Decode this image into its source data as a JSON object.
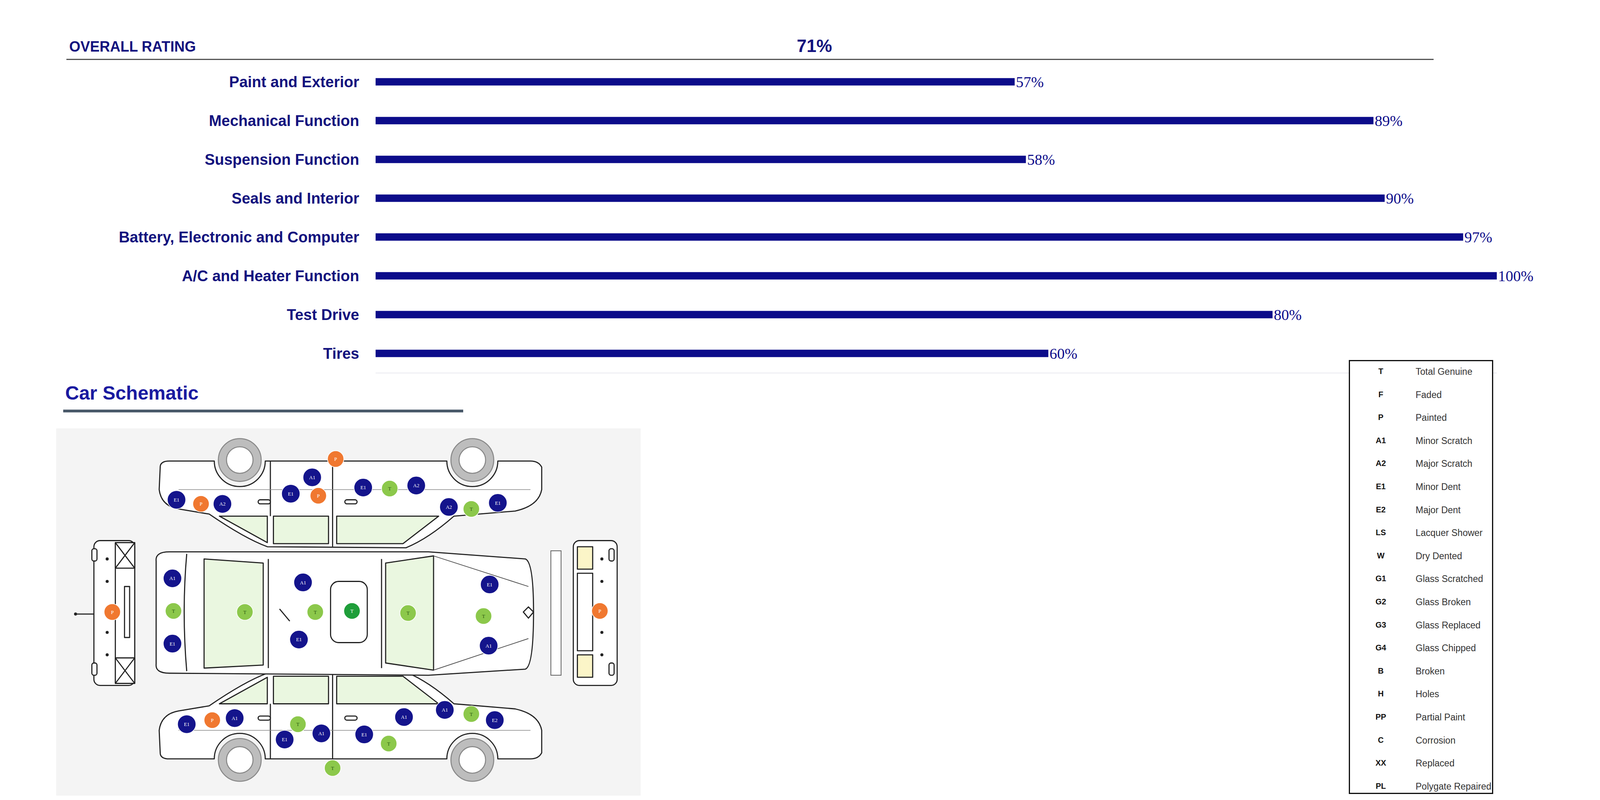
{
  "overall_rating": {
    "label": "OVERALL RATING",
    "value": 71,
    "value_label": "71%"
  },
  "chart_data": {
    "type": "bar",
    "orientation": "horizontal",
    "categories": [
      "Paint and Exterior",
      "Mechanical Function",
      "Suspension Function",
      "Seals and Interior",
      "Battery, Electronic and Computer",
      "A/C and Heater Function",
      "Test Drive",
      "Tires"
    ],
    "values": [
      57,
      89,
      58,
      90,
      97,
      100,
      80,
      60
    ],
    "value_labels": [
      "57%",
      "89%",
      "58%",
      "90%",
      "97%",
      "100%",
      "80%",
      "60%"
    ],
    "color": "#0c0c8a",
    "xlim": [
      0,
      100
    ],
    "xticks": [],
    "grid": false,
    "data_labels": true,
    "tick_labels": "y"
  },
  "schematic": {
    "title": "Car Schematic",
    "markers": [
      {
        "code": "P",
        "color": "#f07830"
      },
      {
        "code": "A1",
        "color": "#14148c"
      },
      {
        "code": "E1",
        "color": "#14148c"
      },
      {
        "code": "P",
        "color": "#f07830"
      },
      {
        "code": "A2",
        "color": "#14148c"
      },
      {
        "code": "E1",
        "color": "#14148c"
      },
      {
        "code": "P",
        "color": "#f07830"
      },
      {
        "code": "E1",
        "color": "#14148c"
      },
      {
        "code": "T",
        "color": "#8cc84b"
      },
      {
        "code": "A2",
        "color": "#14148c"
      },
      {
        "code": "A2",
        "color": "#14148c"
      },
      {
        "code": "T",
        "color": "#8cc84b"
      },
      {
        "code": "E1",
        "color": "#14148c"
      },
      {
        "code": "A1",
        "color": "#14148c"
      },
      {
        "code": "T",
        "color": "#8cc84b"
      },
      {
        "code": "E1",
        "color": "#14148c"
      },
      {
        "code": "T",
        "color": "#8cc84b"
      },
      {
        "code": "A1",
        "color": "#14148c"
      },
      {
        "code": "T",
        "color": "#8cc84b"
      },
      {
        "code": "T",
        "color": "#1f9e3a"
      },
      {
        "code": "E1",
        "color": "#14148c"
      },
      {
        "code": "T",
        "color": "#8cc84b"
      },
      {
        "code": "E1",
        "color": "#14148c"
      },
      {
        "code": "T",
        "color": "#8cc84b"
      },
      {
        "code": "A1",
        "color": "#14148c"
      },
      {
        "code": "P",
        "color": "#f07830"
      },
      {
        "code": "P",
        "color": "#f07830"
      },
      {
        "code": "E1",
        "color": "#14148c"
      },
      {
        "code": "P",
        "color": "#f07830"
      },
      {
        "code": "A1",
        "color": "#14148c"
      },
      {
        "code": "T",
        "color": "#8cc84b"
      },
      {
        "code": "E1",
        "color": "#14148c"
      },
      {
        "code": "A1",
        "color": "#14148c"
      },
      {
        "code": "E1",
        "color": "#14148c"
      },
      {
        "code": "T",
        "color": "#8cc84b"
      },
      {
        "code": "A1",
        "color": "#14148c"
      },
      {
        "code": "A1",
        "color": "#14148c"
      },
      {
        "code": "T",
        "color": "#8cc84b"
      },
      {
        "code": "E2",
        "color": "#14148c"
      },
      {
        "code": "T",
        "color": "#8cc84b"
      }
    ]
  },
  "legend_table": {
    "rows": [
      [
        "T",
        "Total Genuine"
      ],
      [
        "F",
        "Faded"
      ],
      [
        "P",
        "Painted"
      ],
      [
        "A1",
        "Minor Scratch"
      ],
      [
        "A2",
        "Major Scratch"
      ],
      [
        "E1",
        "Minor Dent"
      ],
      [
        "E2",
        "Major Dent"
      ],
      [
        "LS",
        "Lacquer Shower"
      ],
      [
        "W",
        "Dry Dented"
      ],
      [
        "G1",
        "Glass Scratched"
      ],
      [
        "G2",
        "Glass Broken"
      ],
      [
        "G3",
        "Glass Replaced"
      ],
      [
        "G4",
        "Glass Chipped"
      ],
      [
        "B",
        "Broken"
      ],
      [
        "H",
        "Holes"
      ],
      [
        "PP",
        "Partial Paint"
      ],
      [
        "C",
        "Corrosion"
      ],
      [
        "XX",
        "Replaced"
      ],
      [
        "PL",
        "Polygate Repaired"
      ]
    ]
  }
}
